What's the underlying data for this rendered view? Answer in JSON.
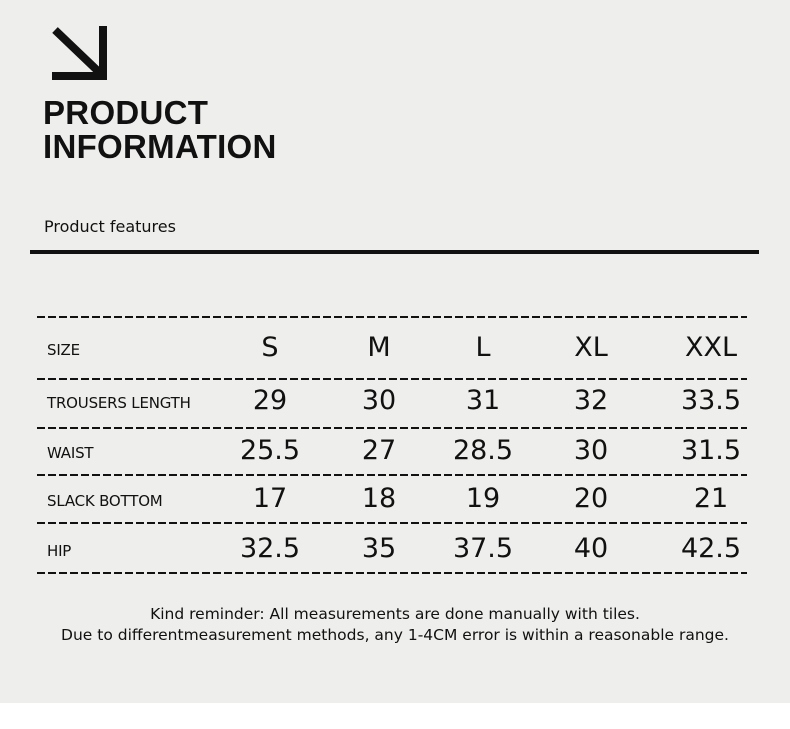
{
  "header": {
    "title_line1": "PRODUCT",
    "title_line2": "INFORMATION",
    "icon": "arrow-down-right-icon"
  },
  "section": {
    "label": "Product features"
  },
  "table": {
    "columns": [
      "SIZE",
      "S",
      "M",
      "L",
      "XL",
      "XXL"
    ],
    "rows": [
      {
        "label": "TROUSERS LENGTH",
        "values": [
          "29",
          "30",
          "31",
          "32",
          "33.5"
        ]
      },
      {
        "label": "WAIST",
        "values": [
          "25.5",
          "27",
          "28.5",
          "30",
          "31.5"
        ]
      },
      {
        "label": "SLACK BOTTOM",
        "values": [
          "17",
          "18",
          "19",
          "20",
          "21"
        ]
      },
      {
        "label": "HIP",
        "values": [
          "32.5",
          "35",
          "37.5",
          "40",
          "42.5"
        ]
      }
    ]
  },
  "notes": {
    "line1": "Kind reminder: All measurements are done manually with tiles.",
    "line2": "Due to differentmeasurement methods, any 1-4CM error is within a reasonable range."
  }
}
